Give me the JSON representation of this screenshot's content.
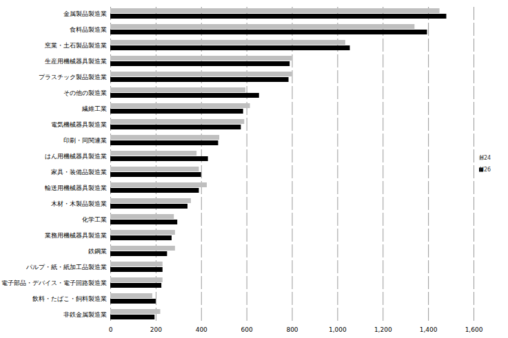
{
  "chart_data": {
    "type": "bar",
    "orientation": "horizontal",
    "categories": [
      "金属製品製造業",
      "食料品製造業",
      "窯業・土石製品製造業",
      "生産用機械器具製造業",
      "プラスチック製品製造業",
      "その他の製造業",
      "繊維工業",
      "電気機械器具製造業",
      "印刷・同関連業",
      "はん用機械器具製造業",
      "家具・装備品製造業",
      "輸送用機械器具製造業",
      "木材・木製品製造業",
      "化学工業",
      "業務用機械器具製造業",
      "鉄鋼業",
      "パルプ・紙・紙加工品製造業",
      "電子部品・デバイス・電子回路製造業",
      "飲料・たばこ・飼料製造業",
      "非鉄金属製造業"
    ],
    "series": [
      {
        "name": "H24",
        "color": "#bfbfbf",
        "values": [
          1450,
          1340,
          1035,
          800,
          800,
          595,
          615,
          590,
          480,
          380,
          390,
          425,
          355,
          280,
          285,
          285,
          230,
          230,
          185,
          220
        ]
      },
      {
        "name": "H26",
        "color": "#000000",
        "values": [
          1480,
          1395,
          1055,
          790,
          785,
          655,
          585,
          575,
          475,
          430,
          400,
          390,
          340,
          295,
          270,
          250,
          230,
          225,
          200,
          195
        ]
      }
    ],
    "xlim": [
      0,
      1600
    ],
    "xticks": [
      0,
      200,
      400,
      600,
      800,
      {
        "value": 1000,
        "label": "1,000"
      },
      {
        "value": 1200,
        "label": "1,200"
      },
      {
        "value": 1400,
        "label": "1,400"
      },
      {
        "value": 1600,
        "label": "1,600"
      }
    ],
    "grid": true,
    "legend": "right"
  }
}
